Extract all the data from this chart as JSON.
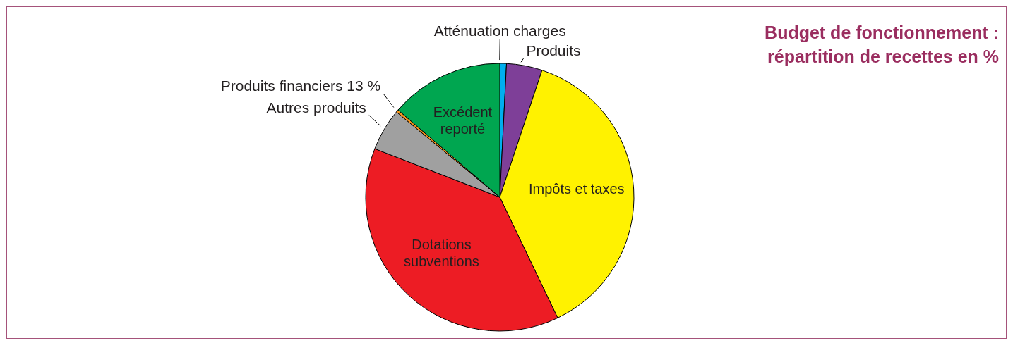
{
  "chart_data": {
    "type": "pie",
    "title": "Budget de fonctionnement : répartition de recettes en %",
    "categories": [
      "Atténuation charges",
      "Produits",
      "Impôts et taxes",
      "Dotations subventions",
      "Autres produits",
      "Produits financiers 13 %",
      "Excédent reporté"
    ],
    "values": [
      0.8,
      4.3,
      37.8,
      38.0,
      5.1,
      0.3,
      13.7
    ],
    "colors": [
      "#00aeef",
      "#7e3f98",
      "#fff200",
      "#ed1c24",
      "#a0a0a0",
      "#f7941d",
      "#00a650"
    ]
  }
}
